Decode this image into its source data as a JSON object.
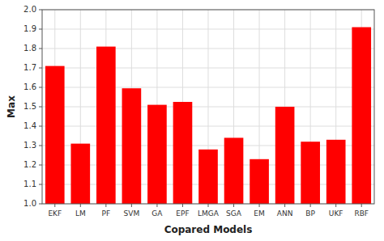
{
  "chart_data": {
    "type": "bar",
    "categories": [
      "EKF",
      "LM",
      "PF",
      "SVM",
      "GA",
      "EPF",
      "LMGA",
      "SGA",
      "EM",
      "ANN",
      "BP",
      "UKF",
      "RBF"
    ],
    "values": [
      1.71,
      1.31,
      1.81,
      1.595,
      1.51,
      1.525,
      1.28,
      1.34,
      1.23,
      1.5,
      1.32,
      1.33,
      1.91
    ],
    "color": "#ff0000",
    "xlabel": "Copared Models",
    "ylabel": "Max",
    "ylim": [
      1.0,
      2.0
    ],
    "yticks": [
      {
        "value": 1.0,
        "label": "1.0"
      },
      1.1,
      1.2,
      1.3,
      1.4,
      1.5,
      1.6,
      1.7,
      1.8,
      1.9,
      {
        "value": 2.0,
        "label": "2.0"
      }
    ],
    "grid": true
  }
}
